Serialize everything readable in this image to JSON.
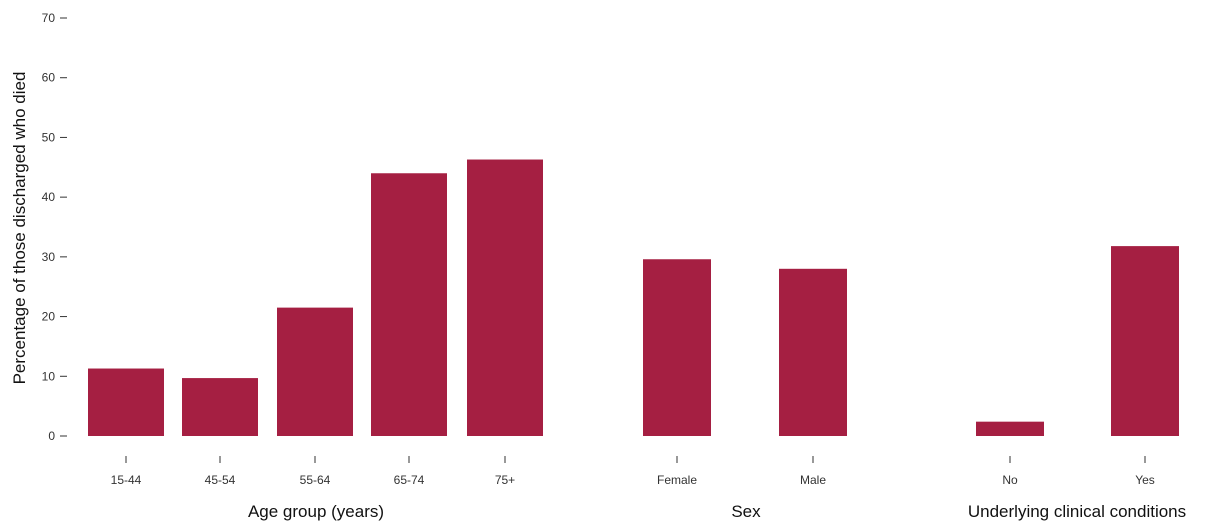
{
  "chart_data": {
    "type": "bar",
    "ylabel": "Percentage of those discharged who died",
    "ylim": [
      0,
      70
    ],
    "yticks": [
      0,
      10,
      20,
      30,
      40,
      50,
      60,
      70
    ],
    "grid": false,
    "bar_color": "#A51F42",
    "groups": [
      {
        "label": "Age group (years)",
        "categories": [
          "15-44",
          "45-54",
          "55-64",
          "65-74",
          "75+"
        ],
        "values": [
          11.3,
          9.7,
          21.5,
          44.0,
          46.3
        ]
      },
      {
        "label": "Sex",
        "categories": [
          "Female",
          "Male"
        ],
        "values": [
          29.6,
          28.0
        ]
      },
      {
        "label": "Underlying clinical conditions",
        "categories": [
          "No",
          "Yes"
        ],
        "values": [
          2.4,
          31.8
        ]
      }
    ]
  }
}
